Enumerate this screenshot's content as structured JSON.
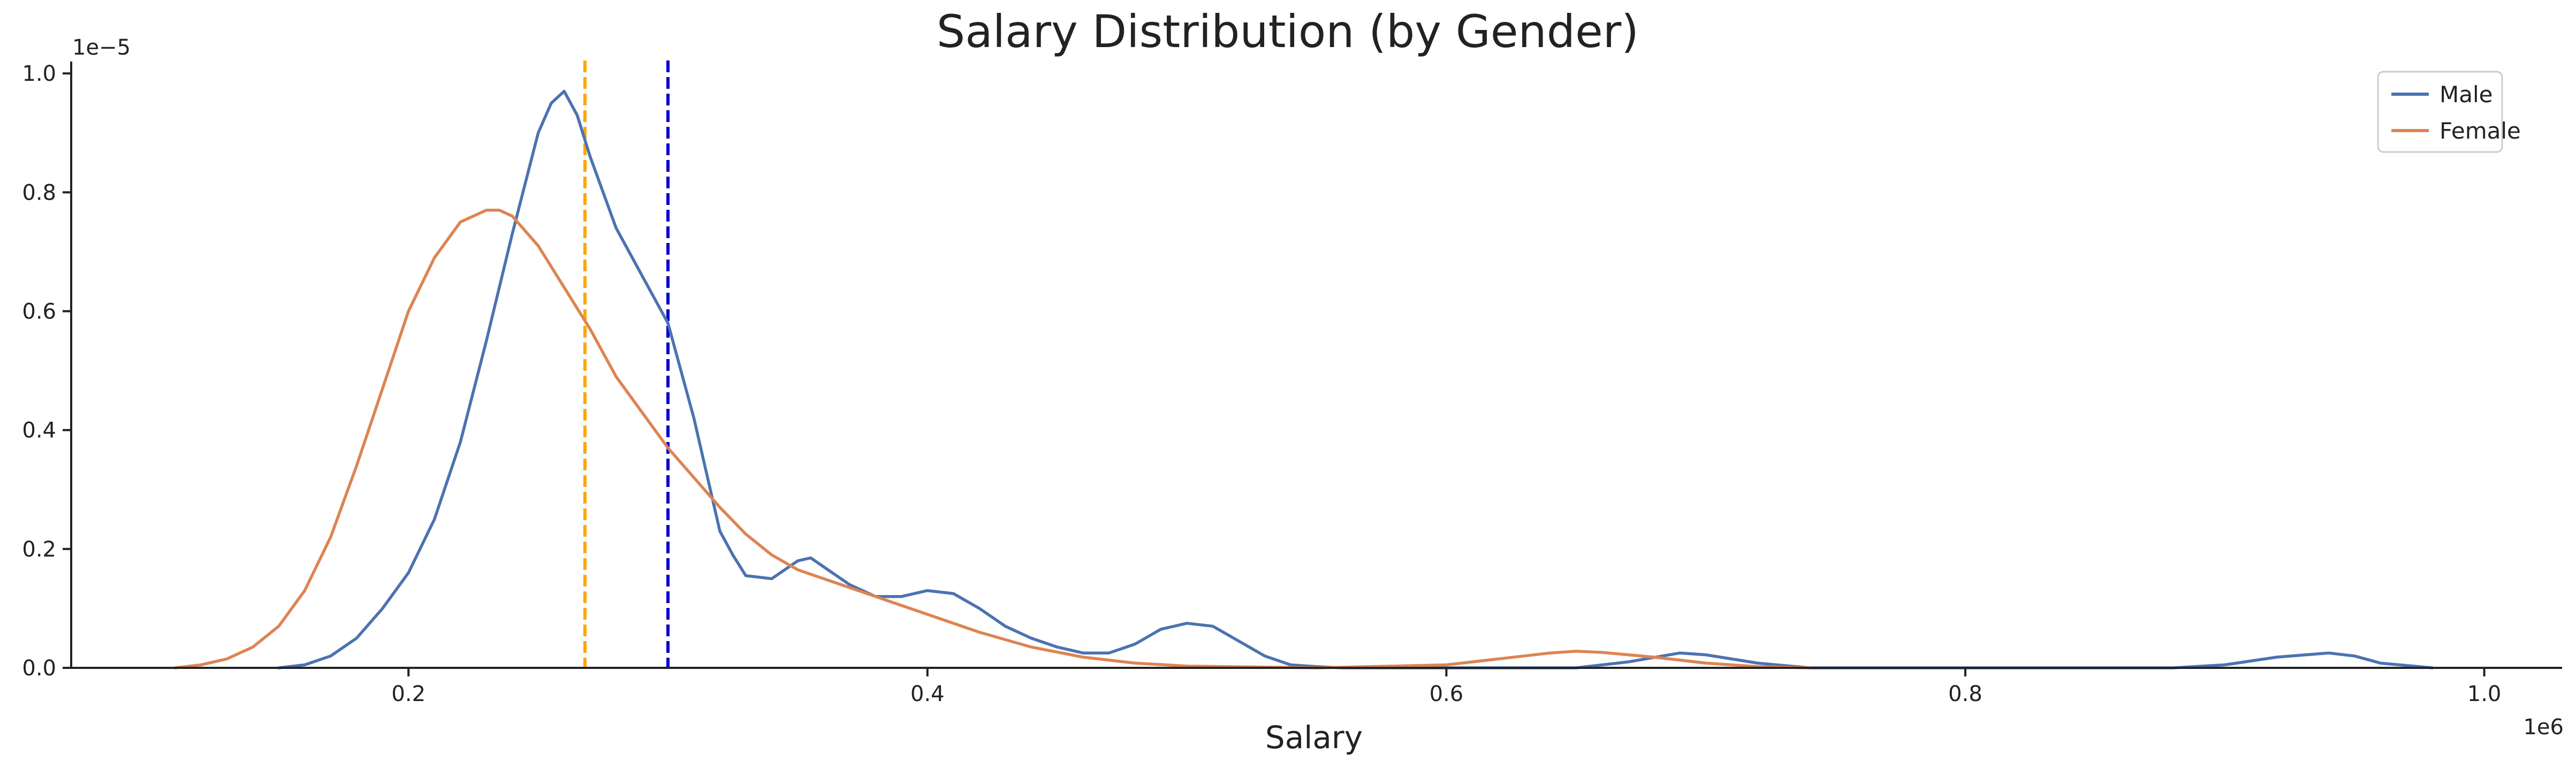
{
  "chart_data": {
    "type": "line",
    "title": "Salary Distribution (by Gender)",
    "xlabel": "Salary",
    "ylabel": "",
    "x_offset_label": "1e6",
    "y_offset_label": "1e−5",
    "xlim": [
      0.07,
      1.03
    ],
    "ylim": [
      0,
      1.02
    ],
    "x_ticks": [
      0.2,
      0.4,
      0.6,
      0.8,
      1.0
    ],
    "x_tick_labels": [
      "0.2",
      "0.4",
      "0.6",
      "0.8",
      "1.0"
    ],
    "y_ticks": [
      0.0,
      0.2,
      0.4,
      0.6,
      0.8,
      1.0
    ],
    "y_tick_labels": [
      "0.0",
      "0.2",
      "0.4",
      "0.6",
      "0.8",
      "1.0"
    ],
    "grid": false,
    "legend_position": "top-right",
    "series": [
      {
        "name": "Male",
        "color": "#4c72b0",
        "x": [
          0.15,
          0.16,
          0.17,
          0.18,
          0.19,
          0.2,
          0.21,
          0.22,
          0.23,
          0.24,
          0.25,
          0.255,
          0.26,
          0.265,
          0.27,
          0.28,
          0.29,
          0.3,
          0.31,
          0.32,
          0.325,
          0.33,
          0.34,
          0.35,
          0.355,
          0.36,
          0.37,
          0.38,
          0.39,
          0.4,
          0.41,
          0.42,
          0.43,
          0.44,
          0.45,
          0.46,
          0.47,
          0.48,
          0.49,
          0.5,
          0.51,
          0.52,
          0.53,
          0.54,
          0.55,
          0.56,
          0.6,
          0.65,
          0.67,
          0.69,
          0.7,
          0.72,
          0.74,
          0.8,
          0.88,
          0.9,
          0.92,
          0.94,
          0.95,
          0.96,
          0.98
        ],
        "y": [
          0.0,
          0.005,
          0.02,
          0.05,
          0.1,
          0.16,
          0.25,
          0.38,
          0.55,
          0.73,
          0.9,
          0.95,
          0.97,
          0.93,
          0.86,
          0.74,
          0.66,
          0.58,
          0.42,
          0.23,
          0.19,
          0.155,
          0.15,
          0.18,
          0.185,
          0.17,
          0.14,
          0.12,
          0.12,
          0.13,
          0.125,
          0.1,
          0.07,
          0.05,
          0.035,
          0.025,
          0.025,
          0.04,
          0.065,
          0.075,
          0.07,
          0.045,
          0.02,
          0.005,
          0.002,
          0.0,
          0.0,
          0.0,
          0.01,
          0.025,
          0.022,
          0.008,
          0.0,
          0.0,
          0.0,
          0.005,
          0.018,
          0.025,
          0.02,
          0.008,
          0.0
        ]
      },
      {
        "name": "Female",
        "color": "#dd8452",
        "x": [
          0.11,
          0.12,
          0.13,
          0.14,
          0.15,
          0.16,
          0.17,
          0.18,
          0.19,
          0.2,
          0.21,
          0.22,
          0.23,
          0.235,
          0.24,
          0.25,
          0.26,
          0.27,
          0.28,
          0.29,
          0.3,
          0.31,
          0.32,
          0.33,
          0.34,
          0.35,
          0.36,
          0.37,
          0.38,
          0.39,
          0.4,
          0.42,
          0.44,
          0.46,
          0.48,
          0.5,
          0.55,
          0.6,
          0.62,
          0.64,
          0.65,
          0.66,
          0.68,
          0.7,
          0.72,
          0.74
        ],
        "y": [
          0.0,
          0.005,
          0.015,
          0.035,
          0.07,
          0.13,
          0.22,
          0.34,
          0.47,
          0.6,
          0.69,
          0.75,
          0.77,
          0.77,
          0.76,
          0.71,
          0.64,
          0.57,
          0.49,
          0.43,
          0.37,
          0.32,
          0.27,
          0.225,
          0.19,
          0.165,
          0.15,
          0.135,
          0.12,
          0.105,
          0.09,
          0.06,
          0.035,
          0.018,
          0.008,
          0.003,
          0.0,
          0.005,
          0.015,
          0.025,
          0.028,
          0.026,
          0.018,
          0.008,
          0.002,
          0.0
        ]
      }
    ],
    "reference_lines": [
      {
        "x": 0.268,
        "color": "#ffa500",
        "style": "dashed"
      },
      {
        "x": 0.3,
        "color": "#0000cd",
        "style": "dashed"
      }
    ]
  }
}
